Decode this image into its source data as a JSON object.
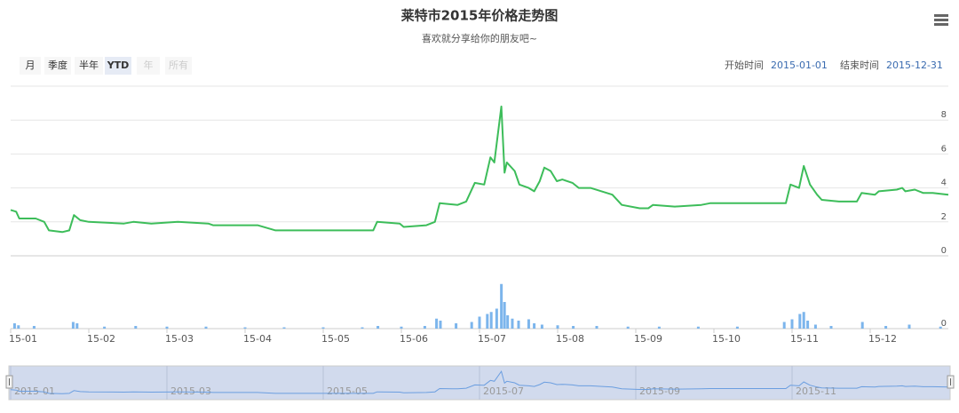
{
  "range_selector": {
    "buttons": [
      "月",
      "季度",
      "半年",
      "YTD",
      "年",
      "所有"
    ],
    "selected": 3,
    "disabled": [
      4,
      5
    ],
    "start_label": "开始时间",
    "start": "2015-01-01",
    "end_label": "结束时间",
    "end": "2015-12-31"
  },
  "chart_data": [
    {
      "type": "line",
      "title": "莱特市2015年价格走势图",
      "subtitle": "喜欢就分享给你的朋友吧~",
      "color": "#3dbd5a",
      "x": [
        1.0,
        1.07,
        1.11,
        1.32,
        1.43,
        1.49,
        1.66,
        1.75,
        1.81,
        1.89,
        2.0,
        2.45,
        2.57,
        2.8,
        3.14,
        3.53,
        3.59,
        4.16,
        4.39,
        4.84,
        5.07,
        5.64,
        5.69,
        5.98,
        6.03,
        6.32,
        6.43,
        6.49,
        6.72,
        6.83,
        6.94,
        7.06,
        7.14,
        7.19,
        7.28,
        7.32,
        7.35,
        7.45,
        7.51,
        7.63,
        7.7,
        7.77,
        7.83,
        7.91,
        7.99,
        8.06,
        8.19,
        8.27,
        8.42,
        8.7,
        8.82,
        9.05,
        9.16,
        9.22,
        9.5,
        9.84,
        9.95,
        10.3,
        10.52,
        10.92,
        10.98,
        11.09,
        11.15,
        11.23,
        11.32,
        11.38,
        11.6,
        11.83,
        11.89,
        12.06,
        12.11,
        12.34,
        12.41,
        12.45,
        12.57,
        12.68,
        12.8,
        13.0
      ],
      "values": [
        2.7,
        2.6,
        2.2,
        2.2,
        2.0,
        1.5,
        1.4,
        1.5,
        2.4,
        2.1,
        2.0,
        1.9,
        2.0,
        1.9,
        2.0,
        1.9,
        1.8,
        1.8,
        1.5,
        1.5,
        1.5,
        1.5,
        2.0,
        1.9,
        1.7,
        1.8,
        2.0,
        3.1,
        3.0,
        3.2,
        4.3,
        4.2,
        5.8,
        5.5,
        8.8,
        4.9,
        5.5,
        5.0,
        4.2,
        4.0,
        3.8,
        4.4,
        5.2,
        5.0,
        4.4,
        4.5,
        4.3,
        4.0,
        4.0,
        3.6,
        3.0,
        2.8,
        2.8,
        3.0,
        2.9,
        3.0,
        3.1,
        3.1,
        3.1,
        3.1,
        4.2,
        4.0,
        5.3,
        4.2,
        3.6,
        3.3,
        3.2,
        3.2,
        3.7,
        3.6,
        3.8,
        3.9,
        4.0,
        3.8,
        3.9,
        3.7,
        3.7,
        3.6
      ],
      "xlim": [
        1,
        13
      ],
      "ylim": [
        0,
        10
      ],
      "yticks": [
        0,
        2,
        4,
        6,
        8
      ],
      "grid": true,
      "xticks": [
        {
          "value": 1,
          "label": "15-01"
        },
        {
          "value": 2,
          "label": "15-02"
        },
        {
          "value": 3,
          "label": "15-03"
        },
        {
          "value": 4,
          "label": "15-04"
        },
        {
          "value": 5,
          "label": "15-05"
        },
        {
          "value": 6,
          "label": "15-06"
        },
        {
          "value": 7,
          "label": "15-07"
        },
        {
          "value": 8,
          "label": "15-08"
        },
        {
          "value": 9,
          "label": "15-09"
        },
        {
          "value": 10,
          "label": "15-10"
        },
        {
          "value": 11,
          "label": "15-11"
        },
        {
          "value": 12,
          "label": "15-12"
        }
      ],
      "navigator_ticks": [
        {
          "value": 1,
          "label": "2015-01"
        },
        {
          "value": 3,
          "label": "2015-03"
        },
        {
          "value": 5,
          "label": "2015-05"
        },
        {
          "value": 7,
          "label": "2015-07"
        },
        {
          "value": 9,
          "label": "2015-09"
        },
        {
          "value": 11,
          "label": "2015-11"
        }
      ]
    },
    {
      "type": "bar",
      "color": "#7cb5ec",
      "x": [
        1.05,
        1.1,
        1.3,
        1.8,
        1.85,
        2.2,
        2.6,
        3.0,
        3.5,
        4.0,
        4.5,
        5.0,
        5.5,
        5.7,
        6.0,
        6.3,
        6.45,
        6.5,
        6.7,
        6.9,
        7.0,
        7.1,
        7.15,
        7.22,
        7.28,
        7.32,
        7.36,
        7.42,
        7.5,
        7.63,
        7.7,
        7.8,
        8.0,
        8.2,
        8.5,
        8.9,
        9.3,
        9.8,
        10.3,
        10.9,
        11.0,
        11.1,
        11.15,
        11.2,
        11.3,
        11.5,
        11.9,
        12.2,
        12.5,
        12.9
      ],
      "values": [
        8,
        5,
        4,
        10,
        8,
        3,
        4,
        3,
        3,
        2,
        2,
        2,
        2,
        4,
        3,
        4,
        15,
        12,
        8,
        10,
        18,
        22,
        25,
        30,
        67,
        40,
        20,
        15,
        12,
        14,
        8,
        6,
        5,
        4,
        4,
        3,
        3,
        3,
        3,
        10,
        14,
        22,
        25,
        12,
        6,
        4,
        10,
        4,
        6,
        3
      ],
      "xlim": [
        1,
        13
      ],
      "ylim": [
        0,
        100
      ],
      "yticks": [
        0
      ]
    }
  ]
}
